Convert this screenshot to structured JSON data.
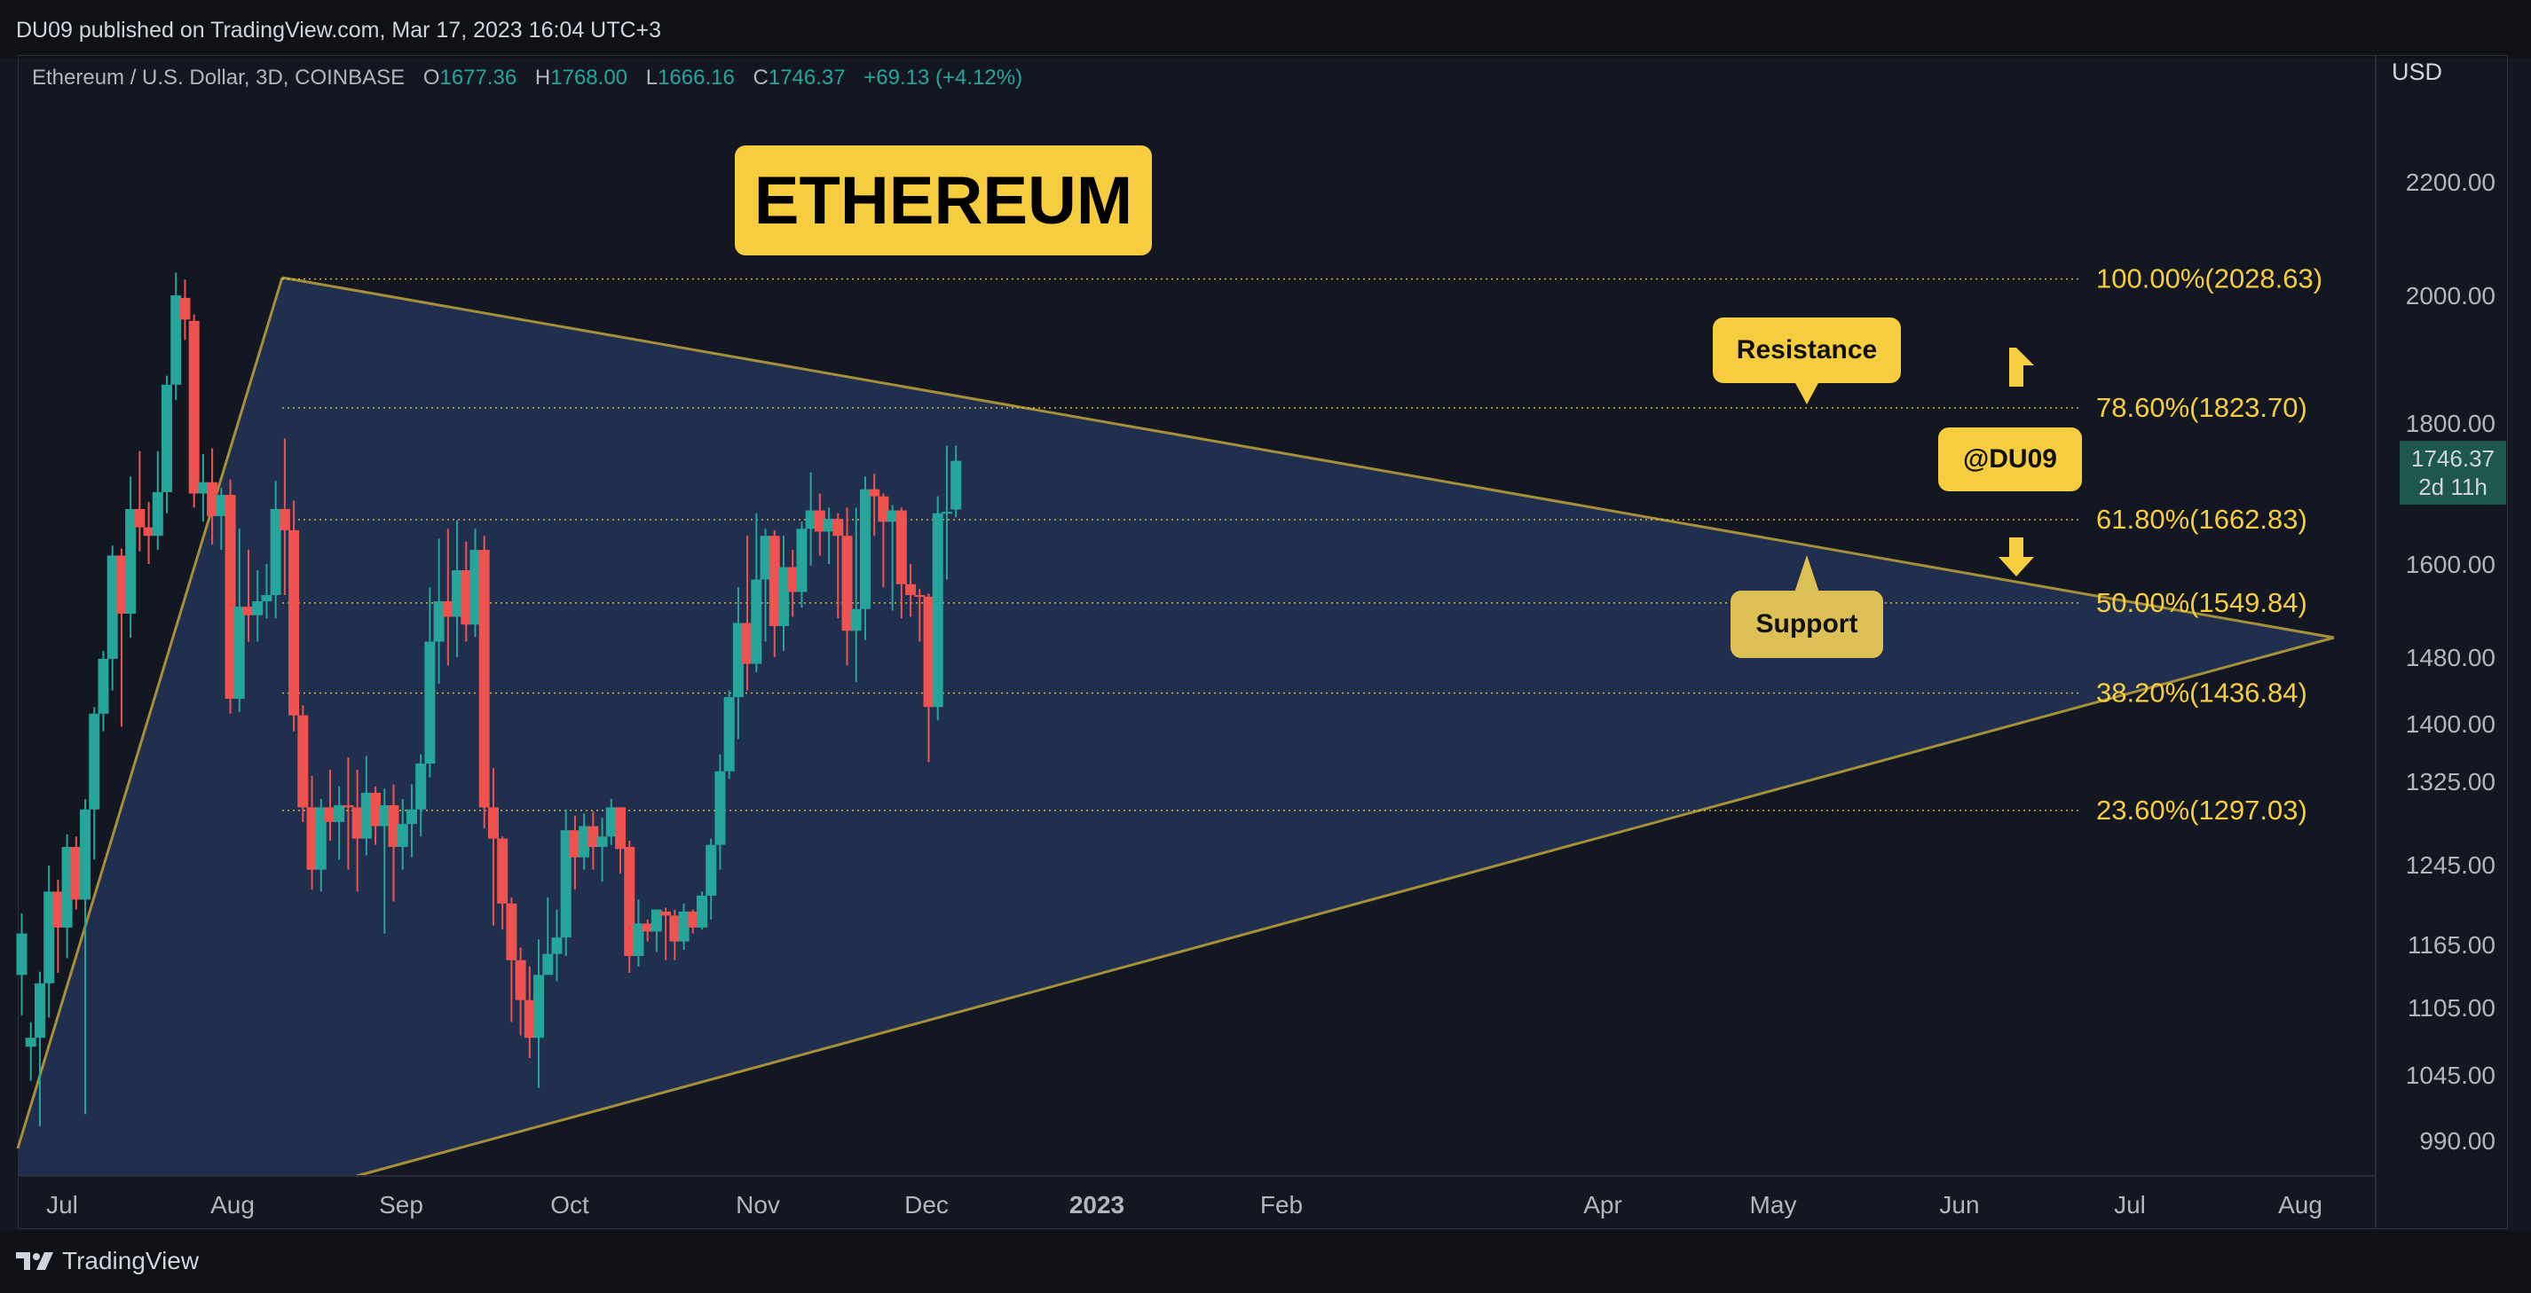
{
  "publisher": "DU09 published on TradingView.com, Mar 17, 2023 16:04 UTC+3",
  "legend": {
    "symbol": "Ethereum / U.S. Dollar, 3D, COINBASE",
    "open_label": "O",
    "open": "1677.36",
    "high_label": "H",
    "high": "1768.00",
    "low_label": "L",
    "low": "1666.16",
    "close_label": "C",
    "close": "1746.37",
    "change": "+69.13 (+4.12%)"
  },
  "currency": "USD",
  "current_price": {
    "value": "1746.37",
    "countdown": "2d 11h"
  },
  "annotations": {
    "title": "ETHEREUM",
    "resistance": "Resistance",
    "support": "Support",
    "author": "@DU09"
  },
  "brand": "TradingView",
  "colors": {
    "up": "#26a69a",
    "down": "#ef5350",
    "fib": "#f6cd3e",
    "triangle_fill": "#223253",
    "triangle_line": "#a58f3a",
    "background": "#131722"
  },
  "chart_data": {
    "type": "candlestick",
    "title": "Ethereum / U.S. Dollar, 3D, COINBASE",
    "y_tick_labels": [
      "2200.00",
      "2000.00",
      "1800.00",
      "1600.00",
      "1480.00",
      "1400.00",
      "1325.00",
      "1245.00",
      "1165.00",
      "1105.00",
      "1045.00",
      "990.00"
    ],
    "x_tick_labels": [
      {
        "label": "Jul"
      },
      {
        "label": "Aug"
      },
      {
        "label": "Sep"
      },
      {
        "label": "Oct"
      },
      {
        "label": "Nov"
      },
      {
        "label": "Dec"
      },
      {
        "label": "2023",
        "bold": true
      },
      {
        "label": "Feb"
      },
      {
        "label": "Apr"
      },
      {
        "label": "May"
      },
      {
        "label": "Jun"
      },
      {
        "label": "Jul"
      },
      {
        "label": "Aug"
      }
    ],
    "fib_levels": [
      {
        "label": "100.00%(2028.63)",
        "value": 2028.63
      },
      {
        "label": "78.60%(1823.70)",
        "value": 1823.7
      },
      {
        "label": "61.80%(1662.83)",
        "value": 1662.83
      },
      {
        "label": "50.00%(1549.84)",
        "value": 1549.84
      },
      {
        "label": "38.20%(1436.84)",
        "value": 1436.84
      },
      {
        "label": "23.60%(1297.03)",
        "value": 1297.03
      }
    ],
    "candles": [
      [
        1136,
        1176,
        1118,
        1098,
        1196
      ],
      [
        1070,
        1078,
        1052,
        1040,
        1092
      ],
      [
        1078,
        1128,
        1064,
        1002,
        1139
      ],
      [
        1128,
        1218,
        1120,
        1096,
        1244
      ],
      [
        1218,
        1182,
        1166,
        1138,
        1230
      ],
      [
        1182,
        1262,
        1176,
        1152,
        1274
      ],
      [
        1262,
        1210,
        1205,
        1200,
        1272
      ],
      [
        1210,
        1298,
        1204,
        1012,
        1308
      ],
      [
        1298,
        1412,
        1292,
        1250,
        1420
      ],
      [
        1412,
        1478,
        1406,
        1390,
        1488
      ],
      [
        1478,
        1612,
        1472,
        1440,
        1626
      ],
      [
        1612,
        1536,
        1530,
        1396,
        1622
      ],
      [
        1536,
        1678,
        1530,
        1505,
        1724
      ],
      [
        1678,
        1652,
        1646,
        1618,
        1760
      ],
      [
        1652,
        1640,
        1632,
        1600,
        1688
      ],
      [
        1640,
        1702,
        1634,
        1620,
        1760
      ],
      [
        1702,
        1860,
        1698,
        1672,
        1874
      ],
      [
        1860,
        2000,
        1852,
        1836,
        2040
      ],
      [
        1996,
        1962,
        1958,
        1930,
        2028
      ],
      [
        1960,
        1700,
        1696,
        1680,
        1970
      ],
      [
        1700,
        1716,
        1690,
        1660,
        1756
      ],
      [
        1716,
        1668,
        1662,
        1628,
        1764
      ],
      [
        1668,
        1698,
        1664,
        1620,
        1708
      ],
      [
        1698,
        1430,
        1424,
        1412,
        1720
      ],
      [
        1430,
        1545,
        1424,
        1414,
        1650
      ],
      [
        1545,
        1534,
        1528,
        1500,
        1620
      ],
      [
        1534,
        1552,
        1528,
        1500,
        1592
      ],
      [
        1552,
        1560,
        1548,
        1530,
        1600
      ],
      [
        1560,
        1678,
        1554,
        1530,
        1718
      ],
      [
        1678,
        1648,
        1642,
        1560,
        1778
      ],
      [
        1648,
        1410,
        1404,
        1390,
        1690
      ],
      [
        1410,
        1300,
        1296,
        1286,
        1422
      ],
      [
        1300,
        1240,
        1236,
        1220,
        1332
      ],
      [
        1240,
        1300,
        1234,
        1218,
        1308
      ],
      [
        1300,
        1286,
        1282,
        1268,
        1340
      ],
      [
        1286,
        1302,
        1280,
        1250,
        1320
      ],
      [
        1302,
        1300,
        1298,
        1240,
        1356
      ],
      [
        1300,
        1270,
        1266,
        1218,
        1340
      ],
      [
        1270,
        1314,
        1264,
        1254,
        1358
      ],
      [
        1314,
        1282,
        1276,
        1264,
        1320
      ],
      [
        1282,
        1302,
        1276,
        1176,
        1318
      ],
      [
        1302,
        1262,
        1258,
        1208,
        1322
      ],
      [
        1262,
        1284,
        1256,
        1240,
        1308
      ],
      [
        1284,
        1298,
        1278,
        1252,
        1322
      ],
      [
        1298,
        1348,
        1292,
        1272,
        1360
      ],
      [
        1348,
        1500,
        1342,
        1330,
        1570
      ],
      [
        1500,
        1552,
        1494,
        1448,
        1636
      ],
      [
        1552,
        1532,
        1526,
        1470,
        1650
      ],
      [
        1532,
        1592,
        1526,
        1480,
        1662
      ],
      [
        1592,
        1522,
        1518,
        1500,
        1632
      ],
      [
        1522,
        1620,
        1516,
        1506,
        1650
      ],
      [
        1620,
        1300,
        1294,
        1280,
        1640
      ],
      [
        1300,
        1270,
        1264,
        1184,
        1342
      ],
      [
        1270,
        1206,
        1200,
        1180,
        1272
      ],
      [
        1206,
        1150,
        1144,
        1092,
        1212
      ],
      [
        1150,
        1112,
        1106,
        1080,
        1162
      ],
      [
        1112,
        1078,
        1072,
        1060,
        1144
      ],
      [
        1078,
        1136,
        1072,
        1034,
        1170
      ],
      [
        1136,
        1156,
        1130,
        1140,
        1212
      ],
      [
        1156,
        1172,
        1150,
        1130,
        1200
      ],
      [
        1172,
        1278,
        1166,
        1154,
        1298
      ],
      [
        1278,
        1252,
        1246,
        1220,
        1292
      ],
      [
        1252,
        1282,
        1246,
        1240,
        1294
      ],
      [
        1282,
        1262,
        1258,
        1240,
        1296
      ],
      [
        1262,
        1272,
        1256,
        1228,
        1290
      ],
      [
        1272,
        1300,
        1266,
        1264,
        1308
      ],
      [
        1300,
        1260,
        1256,
        1236,
        1300
      ],
      [
        1262,
        1154,
        1150,
        1138,
        1268
      ],
      [
        1154,
        1186,
        1148,
        1144,
        1210
      ],
      [
        1186,
        1178,
        1174,
        1168,
        1190
      ],
      [
        1178,
        1200,
        1172,
        1158,
        1200
      ],
      [
        1198,
        1194,
        1190,
        1150,
        1202
      ],
      [
        1194,
        1168,
        1164,
        1150,
        1200
      ],
      [
        1168,
        1198,
        1162,
        1160,
        1206
      ],
      [
        1198,
        1182,
        1176,
        1176,
        1200
      ],
      [
        1182,
        1214,
        1176,
        1180,
        1218
      ],
      [
        1214,
        1264,
        1208,
        1190,
        1270
      ],
      [
        1264,
        1338,
        1258,
        1240,
        1360
      ],
      [
        1338,
        1432,
        1332,
        1328,
        1440
      ],
      [
        1432,
        1524,
        1426,
        1380,
        1570
      ],
      [
        1524,
        1472,
        1466,
        1440,
        1640
      ],
      [
        1472,
        1580,
        1466,
        1462,
        1672
      ],
      [
        1580,
        1640,
        1574,
        1500,
        1650
      ],
      [
        1640,
        1520,
        1514,
        1480,
        1648
      ],
      [
        1520,
        1596,
        1514,
        1488,
        1640
      ],
      [
        1596,
        1564,
        1558,
        1532,
        1620
      ],
      [
        1564,
        1650,
        1558,
        1544,
        1660
      ],
      [
        1650,
        1676,
        1644,
        1598,
        1730
      ],
      [
        1676,
        1646,
        1640,
        1612,
        1700
      ],
      [
        1646,
        1664,
        1640,
        1600,
        1680
      ],
      [
        1664,
        1640,
        1634,
        1530,
        1672
      ],
      [
        1640,
        1514,
        1508,
        1470,
        1680
      ],
      [
        1514,
        1542,
        1508,
        1450,
        1680
      ],
      [
        1542,
        1706,
        1536,
        1502,
        1724
      ],
      [
        1706,
        1696,
        1690,
        1640,
        1728
      ],
      [
        1696,
        1660,
        1654,
        1570,
        1700
      ],
      [
        1660,
        1676,
        1654,
        1540,
        1684
      ],
      [
        1676,
        1574,
        1568,
        1530,
        1680
      ],
      [
        1574,
        1560,
        1554,
        1532,
        1600
      ],
      [
        1560,
        1558,
        1554,
        1500,
        1568
      ],
      [
        1558,
        1420,
        1414,
        1350,
        1562
      ],
      [
        1420,
        1672,
        1414,
        1404,
        1696
      ],
      [
        1672,
        1674,
        1668,
        1580,
        1768
      ],
      [
        1677.36,
        1746.37,
        1666.16,
        1666.16,
        1768
      ]
    ]
  }
}
